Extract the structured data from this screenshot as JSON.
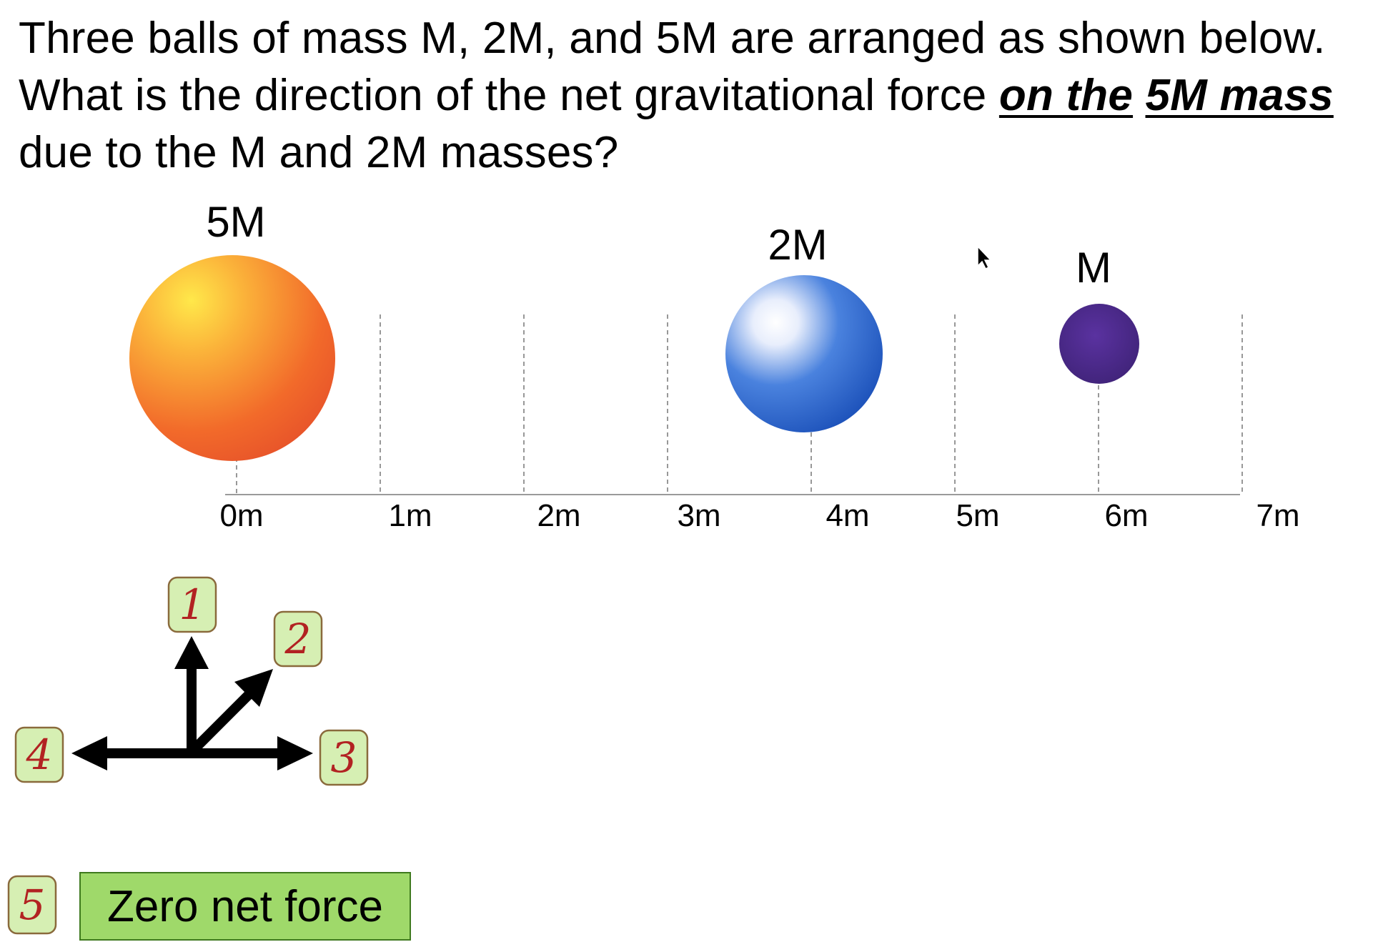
{
  "question": {
    "part1": "Three balls of mass M, 2M, and 5M are arranged as shown below.  What is the direction of the net gravitational force ",
    "emphasis1": "on the",
    "space": " ",
    "emphasis2": "5M mass",
    "part2": " due to the M and 2M masses?"
  },
  "axis": {
    "ticks": [
      "0m",
      "1m",
      "2m",
      "3m",
      "4m",
      "5m",
      "6m",
      "7m"
    ]
  },
  "masses": [
    {
      "label": "5M",
      "position_m": 0,
      "color": "#f26a2a"
    },
    {
      "label": "2M",
      "position_m": 4,
      "color": "#1f5bc4"
    },
    {
      "label": "M",
      "position_m": 6,
      "color": "#4b2a86"
    }
  ],
  "answers": [
    {
      "number": "1",
      "direction": "up"
    },
    {
      "number": "2",
      "direction": "up-right"
    },
    {
      "number": "3",
      "direction": "right"
    },
    {
      "number": "4",
      "direction": "left"
    },
    {
      "number": "5",
      "text": "Zero net force"
    }
  ],
  "colors": {
    "badge_fill": "#d6efb3",
    "badge_border": "#8a6a3c",
    "badge_text": "#b22222",
    "zero_box": "#9fd96a"
  }
}
